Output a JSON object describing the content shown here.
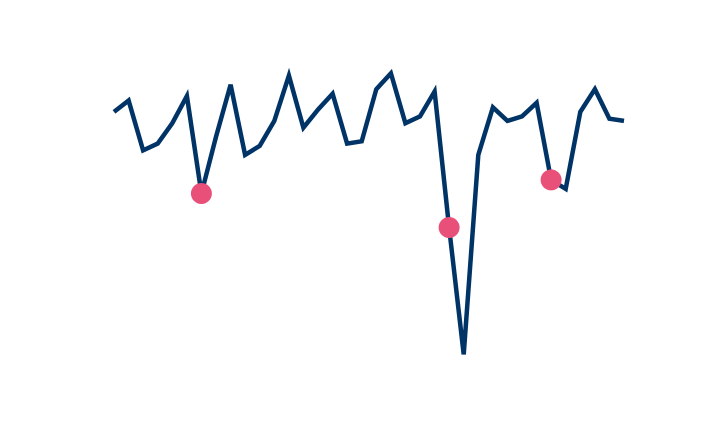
{
  "chart_data": {
    "type": "line",
    "title": "",
    "xlabel": "",
    "ylabel": "",
    "grid": false,
    "legend": "none",
    "x": [
      0,
      1,
      2,
      3,
      4,
      5,
      6,
      7,
      8,
      9,
      10,
      11,
      12,
      13,
      14,
      15,
      16,
      17,
      18,
      19,
      20,
      21,
      22,
      23,
      24,
      25,
      26,
      27,
      28,
      29,
      30,
      31,
      32,
      33,
      34,
      35
    ],
    "series": [
      {
        "values": [
          0.62,
          0.57,
          0.79,
          0.76,
          0.67,
          0.55,
          0.98,
          0.73,
          0.5,
          0.81,
          0.77,
          0.66,
          0.46,
          0.69,
          0.61,
          0.54,
          0.76,
          0.75,
          0.52,
          0.45,
          0.67,
          0.64,
          0.53,
          1.13,
          1.69,
          0.81,
          0.6,
          0.66,
          0.64,
          0.58,
          0.92,
          0.96,
          0.62,
          0.52,
          0.65,
          0.66
        ],
        "color": "#003366"
      }
    ],
    "highlights": [
      {
        "x": 6,
        "y": 0.98
      },
      {
        "x": 23,
        "y": 1.13
      },
      {
        "x": 30,
        "y": 0.92
      }
    ],
    "highlight_color": "#E8507A",
    "ylim": [
      0.4,
      1.75
    ],
    "invert_y": true
  }
}
